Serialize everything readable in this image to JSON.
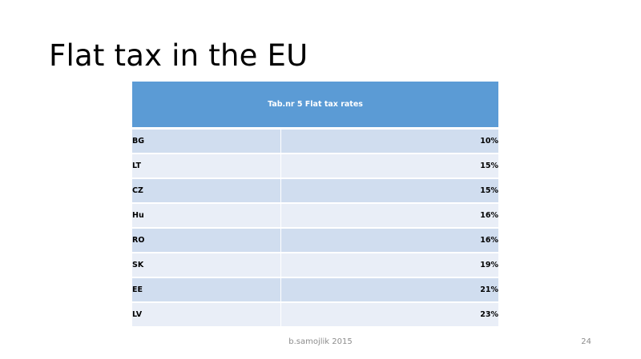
{
  "slide": {
    "title": "Flat tax in the EU",
    "footer": "b.samojlik 2015",
    "page_number": "24"
  },
  "table": {
    "caption": "Tab.nr 5 Flat tax rates",
    "rows": [
      {
        "country": "BG",
        "rate": "10%"
      },
      {
        "country": "LT",
        "rate": "15%"
      },
      {
        "country": "CZ",
        "rate": "15%"
      },
      {
        "country": "Hu",
        "rate": "16%"
      },
      {
        "country": "RO",
        "rate": "16%"
      },
      {
        "country": "SK",
        "rate": "19%"
      },
      {
        "country": "EE",
        "rate": "21%"
      },
      {
        "country": "LV",
        "rate": "23%"
      }
    ]
  },
  "colors": {
    "header_fill": "#5b9bd5",
    "band_dark": "#d0ddef",
    "band_light": "#e9eef7"
  }
}
